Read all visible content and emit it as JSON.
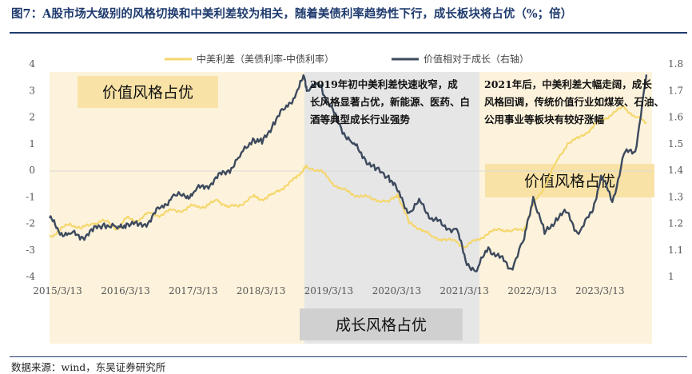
{
  "title": "图7：A股市场大级别的风格切换和中美利差较为相关，随着美债利率趋势性下行，成长板块将占优（%；倍）",
  "source": "数据来源：wind，东吴证券研究所",
  "colors": {
    "left_series": "#f5d76e",
    "right_series": "#3d4a5e",
    "value_band": "#fdf3dc",
    "growth_band": "#e6e6e6",
    "label_box_value": "#f8e2a6",
    "label_box_growth": "#d0d0d0"
  },
  "chart_data": {
    "type": "line",
    "x_type": "date",
    "x_tick_labels": [
      "2015/3/13",
      "2016/3/13",
      "2017/3/13",
      "2018/3/13",
      "2019/3/13",
      "2020/3/13",
      "2021/3/13",
      "2022/3/13",
      "2023/3/13"
    ],
    "y_left_ticks": [
      4,
      3,
      2,
      1,
      0,
      -1,
      -2,
      -3,
      -4
    ],
    "y_right_ticks": [
      "1.8",
      "1.7",
      "1.6",
      "1.5",
      "1.4",
      "1.3",
      "1.2",
      "1.1",
      "1"
    ],
    "ylim_left": [
      -4,
      4
    ],
    "ylim_right": [
      1.0,
      1.8
    ],
    "xlim": [
      "2015-03-13",
      "2024-01-31"
    ],
    "legend_position": "top-center",
    "series": [
      {
        "name": "中美利差（美债利率-中债利率）",
        "axis": "left",
        "color": "#f5d76e",
        "x": [
          "2015-03-13",
          "2015-05-01",
          "2015-07-01",
          "2015-09-01",
          "2015-11-01",
          "2016-01-01",
          "2016-03-13",
          "2016-05-01",
          "2016-07-01",
          "2016-09-01",
          "2016-11-01",
          "2017-01-01",
          "2017-03-13",
          "2017-05-01",
          "2017-07-01",
          "2017-09-01",
          "2017-11-01",
          "2018-01-01",
          "2018-03-13",
          "2018-05-01",
          "2018-07-01",
          "2018-09-01",
          "2018-11-01",
          "2018-12-15",
          "2019-01-01",
          "2019-03-13",
          "2019-05-01",
          "2019-07-01",
          "2019-09-01",
          "2019-11-01",
          "2020-01-01",
          "2020-03-13",
          "2020-05-01",
          "2020-07-01",
          "2020-09-01",
          "2020-11-01",
          "2021-01-01",
          "2021-03-13",
          "2021-05-01",
          "2021-07-01",
          "2021-09-01",
          "2021-11-01",
          "2022-01-01",
          "2022-03-13",
          "2022-05-01",
          "2022-07-01",
          "2022-09-01",
          "2022-11-01",
          "2023-01-01",
          "2023-03-13",
          "2023-05-01",
          "2023-07-01",
          "2023-09-01",
          "2023-11-01",
          "2024-01-01"
        ],
        "y": [
          -2.5,
          -2.3,
          -2.0,
          -2.2,
          -2.0,
          -1.9,
          -2.2,
          -1.8,
          -1.9,
          -1.6,
          -1.7,
          -1.5,
          -1.5,
          -1.3,
          -1.4,
          -1.1,
          -1.4,
          -1.3,
          -1.0,
          -1.1,
          -0.9,
          -0.6,
          -0.3,
          0.1,
          0.1,
          0.0,
          -0.4,
          -0.7,
          -0.9,
          -1.0,
          -1.1,
          -1.2,
          -0.9,
          -2.0,
          -2.2,
          -2.5,
          -2.6,
          -2.7,
          -2.9,
          -2.6,
          -2.4,
          -2.2,
          -2.3,
          -2.2,
          -1.3,
          -0.6,
          0.3,
          1.0,
          1.2,
          1.6,
          1.9,
          2.1,
          2.4,
          2.0,
          1.8
        ]
      },
      {
        "name": "价值相对于成长（右轴）",
        "axis": "right",
        "color": "#3d4a5e",
        "x": [
          "2015-03-13",
          "2015-05-01",
          "2015-07-01",
          "2015-09-01",
          "2015-11-01",
          "2016-01-01",
          "2016-03-13",
          "2016-05-01",
          "2016-07-01",
          "2016-09-01",
          "2016-11-01",
          "2017-01-01",
          "2017-03-13",
          "2017-05-01",
          "2017-07-01",
          "2017-09-01",
          "2017-11-01",
          "2018-01-01",
          "2018-03-13",
          "2018-05-01",
          "2018-07-01",
          "2018-09-01",
          "2018-11-01",
          "2018-12-15",
          "2019-01-01",
          "2019-03-13",
          "2019-05-01",
          "2019-07-01",
          "2019-09-01",
          "2019-11-01",
          "2020-01-01",
          "2020-03-13",
          "2020-05-01",
          "2020-07-01",
          "2020-09-01",
          "2020-11-01",
          "2021-01-01",
          "2021-03-13",
          "2021-05-01",
          "2021-07-01",
          "2021-09-01",
          "2021-11-01",
          "2022-01-01",
          "2022-03-13",
          "2022-05-01",
          "2022-07-01",
          "2022-09-01",
          "2022-11-01",
          "2023-01-01",
          "2023-03-13",
          "2023-05-01",
          "2023-07-01",
          "2023-09-01",
          "2023-11-01",
          "2024-01-01"
        ],
        "y": [
          1.22,
          1.17,
          1.16,
          1.15,
          1.17,
          1.2,
          1.18,
          1.2,
          1.19,
          1.21,
          1.26,
          1.3,
          1.3,
          1.32,
          1.34,
          1.37,
          1.4,
          1.45,
          1.52,
          1.5,
          1.58,
          1.63,
          1.69,
          1.75,
          1.7,
          1.72,
          1.64,
          1.56,
          1.5,
          1.45,
          1.4,
          1.38,
          1.32,
          1.24,
          1.28,
          1.22,
          1.19,
          1.18,
          1.06,
          1.02,
          1.11,
          1.07,
          1.03,
          1.14,
          1.3,
          1.16,
          1.22,
          1.24,
          1.16,
          1.24,
          1.38,
          1.28,
          1.46,
          1.47,
          1.76
        ]
      }
    ],
    "annotations": [
      "2019年初中美利差快速收窄，成长风格显著占优，新能源、医药、白酒等典型成长行业强势",
      "2021年后，中美利差大幅走阔，成长风格回调，传统价值行业如煤炭、石油、公用事业等板块有较好涨幅"
    ],
    "shaded_regions": [
      {
        "label": "价值风格占优",
        "start": "2015-03-13",
        "end": "2018-12-15",
        "fill": "value_band"
      },
      {
        "label": "成长风格占优",
        "start": "2018-12-15",
        "end": "2021-07-15",
        "fill": "growth_band"
      },
      {
        "label": "价值风格占优",
        "start": "2021-07-15",
        "end": "2024-01-31",
        "fill": "value_band"
      }
    ]
  }
}
